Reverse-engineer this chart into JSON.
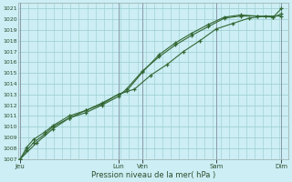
{
  "background_color": "#cceef4",
  "plot_bg_color": "#cceef4",
  "grid_color_major": "#99cccc",
  "grid_color_minor": "#bbdddd",
  "line_color": "#336633",
  "marker_color": "#336633",
  "xlabel": "Pression niveau de la mer( hPa )",
  "ylim": [
    1007,
    1021.5
  ],
  "yticks": [
    1007,
    1008,
    1009,
    1010,
    1011,
    1012,
    1013,
    1014,
    1015,
    1016,
    1017,
    1018,
    1019,
    1020,
    1021
  ],
  "day_labels": [
    "Jeu",
    "Lun",
    "Ven",
    "Sam",
    "Dim"
  ],
  "day_positions": [
    0.0,
    3.0,
    3.75,
    6.0,
    8.0
  ],
  "vline_color": "#8899aa",
  "series1_x": [
    0,
    0.2,
    0.4,
    0.75,
    1.0,
    1.5,
    2.0,
    2.5,
    3.0,
    3.25,
    3.75,
    4.25,
    4.75,
    5.25,
    5.75,
    6.25,
    6.75,
    7.25,
    7.75,
    8.0
  ],
  "series1_y": [
    1007.0,
    1008.1,
    1008.8,
    1009.5,
    1010.1,
    1011.0,
    1011.5,
    1012.1,
    1013.0,
    1013.3,
    1015.1,
    1016.7,
    1017.8,
    1018.7,
    1019.5,
    1020.2,
    1020.4,
    1020.3,
    1020.2,
    1021.0
  ],
  "series2_x": [
    0,
    0.2,
    0.4,
    0.75,
    1.0,
    1.5,
    2.0,
    2.5,
    3.0,
    3.25,
    3.75,
    4.25,
    4.75,
    5.25,
    5.75,
    6.25,
    6.75,
    7.25,
    7.75,
    8.0
  ],
  "series2_y": [
    1007.0,
    1007.8,
    1008.5,
    1009.3,
    1010.0,
    1010.8,
    1011.3,
    1012.0,
    1012.8,
    1013.5,
    1015.2,
    1016.5,
    1017.6,
    1018.5,
    1019.3,
    1020.1,
    1020.3,
    1020.3,
    1020.2,
    1020.5
  ],
  "series3_x": [
    0,
    0.5,
    1.0,
    1.5,
    2.0,
    2.5,
    3.0,
    3.5,
    4.0,
    4.5,
    5.0,
    5.5,
    6.0,
    6.5,
    7.0,
    7.5,
    8.0
  ],
  "series3_y": [
    1007.0,
    1008.5,
    1009.8,
    1010.8,
    1011.5,
    1012.2,
    1013.0,
    1013.5,
    1014.8,
    1015.8,
    1017.0,
    1018.0,
    1019.1,
    1019.6,
    1020.1,
    1020.3,
    1020.3
  ],
  "xlim": [
    -0.05,
    8.2
  ],
  "vline_positions": [
    0.0,
    3.0,
    3.75,
    6.0,
    8.0
  ]
}
